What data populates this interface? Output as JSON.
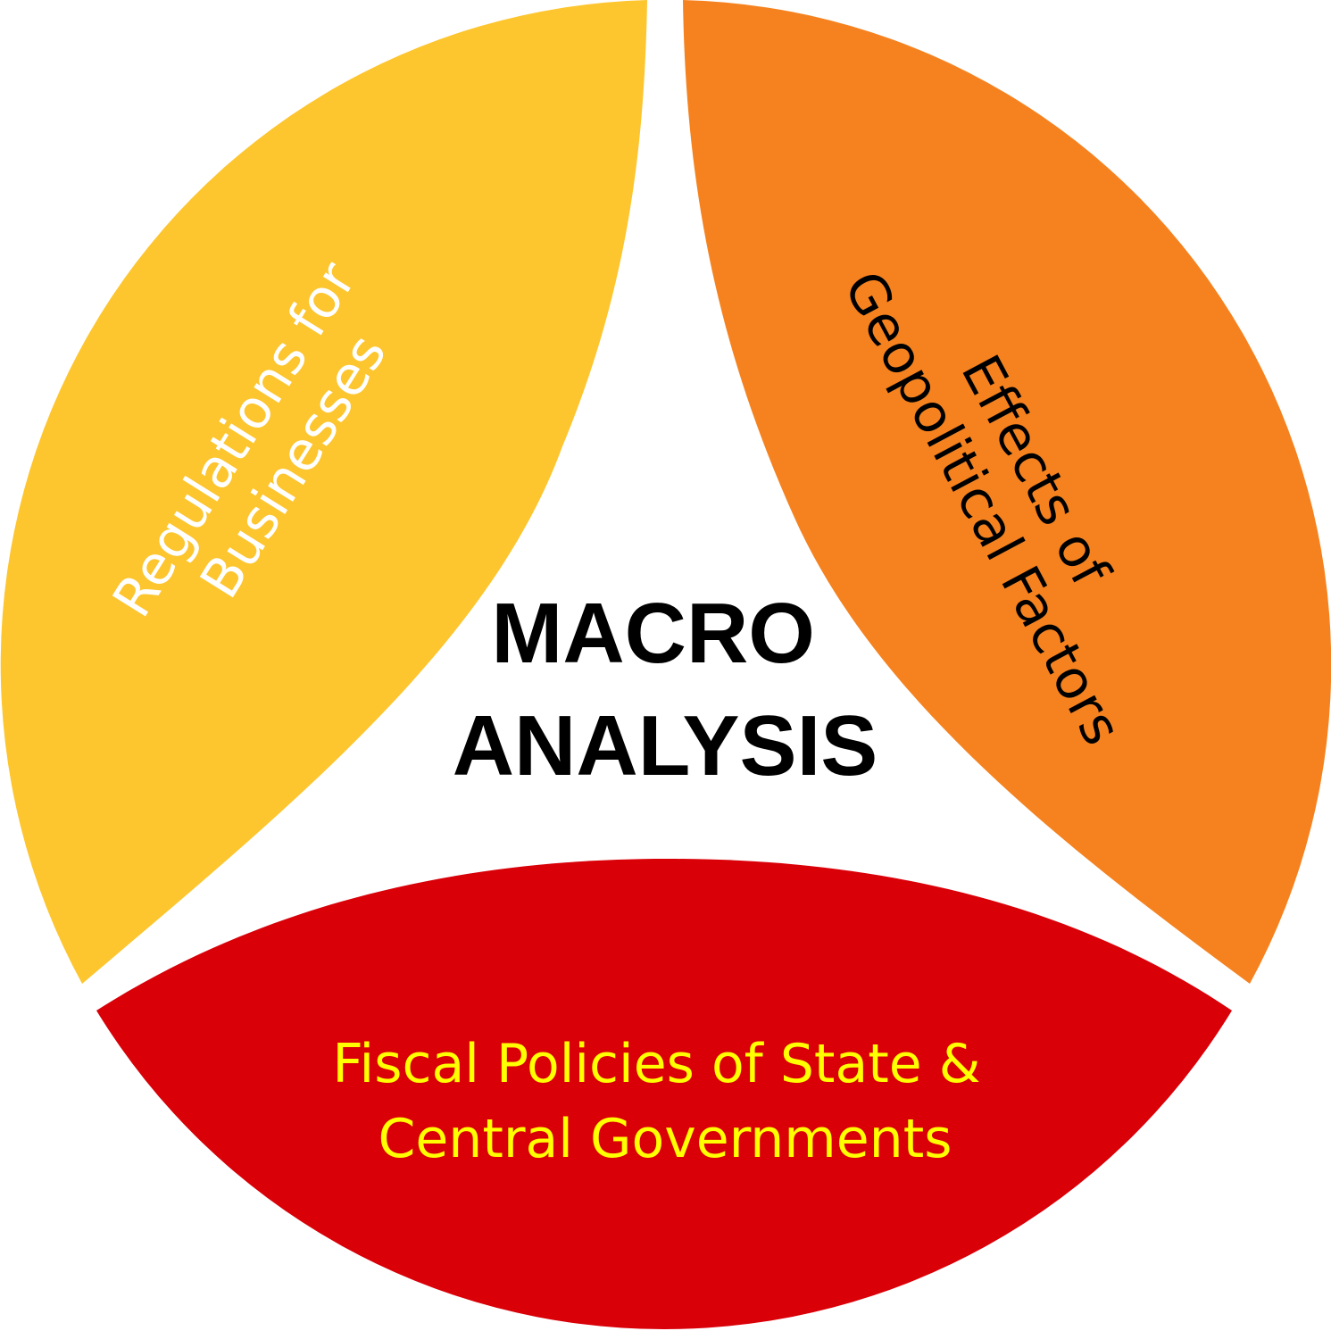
{
  "center": {
    "line1": "MACRO",
    "line2": "ANALYSIS"
  },
  "segments": [
    {
      "id": "regulations",
      "color": "#FDC52E",
      "text_color": "#FFFFFF",
      "lines": [
        "Regulations for",
        "Businesses"
      ]
    },
    {
      "id": "geopolitical",
      "color": "#F5821F",
      "text_color": "#000000",
      "lines": [
        "Effects of",
        "Geopolitical Factors"
      ]
    },
    {
      "id": "fiscal",
      "color": "#D90008",
      "text_color": "#FFFF00",
      "lines": [
        "Fiscal Policies of State &",
        "Central Governments"
      ]
    }
  ]
}
